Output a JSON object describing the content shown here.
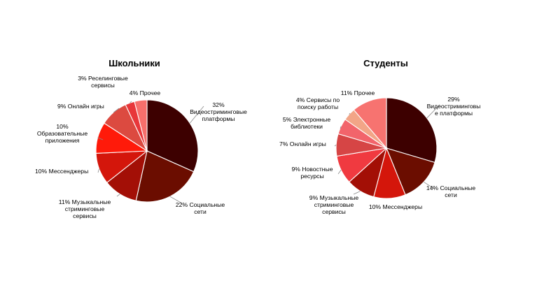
{
  "chart_data": [
    {
      "type": "pie",
      "title": "Школьники",
      "slices": [
        {
          "label": "32% Видеостриминговые платформы",
          "value": 32,
          "color": "#3d0000"
        },
        {
          "label": "22% Социальные сети",
          "value": 22,
          "color": "#6b0d00"
        },
        {
          "label": "11% Музыкальные стриминговые сервисы",
          "value": 11,
          "color": "#a30f06"
        },
        {
          "label": "10% Мессенджеры",
          "value": 10,
          "color": "#d4160b"
        },
        {
          "label": "10% Образовательные приложения",
          "value": 10,
          "color": "#ff1a0a"
        },
        {
          "label": "9% Онлайн игры",
          "value": 9,
          "color": "#dc4a40"
        },
        {
          "label": "3% Реселинговые сервисы",
          "value": 3,
          "color": "#e8373a"
        },
        {
          "label": "4% Прочее",
          "value": 4,
          "color": "#f76f6b"
        }
      ]
    },
    {
      "type": "pie",
      "title": "Студенты",
      "slices": [
        {
          "label": "29% Видеостриминговые платформы",
          "value": 29,
          "color": "#3d0000"
        },
        {
          "label": "14% Социальные сети",
          "value": 14,
          "color": "#6b0d00"
        },
        {
          "label": "10% Мессенджеры",
          "value": 10,
          "color": "#d4160b"
        },
        {
          "label": "9% Музыкальные стриминговые сервисы",
          "value": 9,
          "color": "#a30f06"
        },
        {
          "label": "9% Новостные ресурсы",
          "value": 9,
          "color": "#f03a40"
        },
        {
          "label": "7% Онлайн игры",
          "value": 7,
          "color": "#d64545"
        },
        {
          "label": "5% Электронные библиотеки",
          "value": 5,
          "color": "#f2646b"
        },
        {
          "label": "4% Сервисы по поиску работы",
          "value": 4,
          "color": "#f2a587"
        },
        {
          "label": "11% Прочее",
          "value": 11,
          "color": "#f77370"
        }
      ]
    }
  ]
}
